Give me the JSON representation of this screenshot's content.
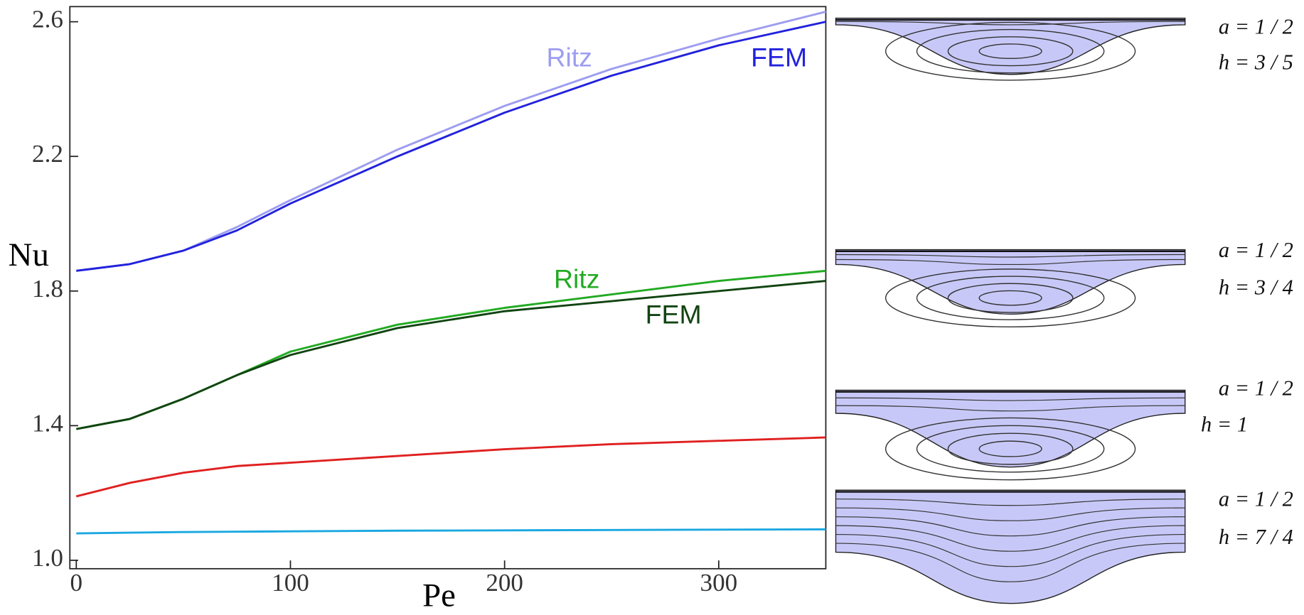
{
  "chart_data": {
    "type": "line",
    "x_label": "Pe",
    "y_label": "Nu",
    "x": [
      0,
      25,
      50,
      75,
      100,
      150,
      200,
      250,
      300,
      350
    ],
    "series": [
      {
        "color": "#9d9df0",
        "values": [
          1.86,
          1.88,
          1.92,
          1.99,
          2.07,
          2.22,
          2.35,
          2.46,
          2.55,
          2.63
        ]
      },
      {
        "color": "#2222dd",
        "values": [
          1.86,
          1.88,
          1.92,
          1.98,
          2.06,
          2.2,
          2.33,
          2.44,
          2.53,
          2.6
        ]
      },
      {
        "color": "#22aa22",
        "values": [
          1.39,
          1.42,
          1.48,
          1.55,
          1.62,
          1.7,
          1.75,
          1.79,
          1.83,
          1.86
        ]
      },
      {
        "color": "#114411",
        "values": [
          1.39,
          1.42,
          1.48,
          1.55,
          1.61,
          1.69,
          1.74,
          1.77,
          1.8,
          1.83
        ]
      },
      {
        "color": "#e02020",
        "values": [
          1.19,
          1.23,
          1.26,
          1.28,
          1.29,
          1.31,
          1.33,
          1.345,
          1.355,
          1.365
        ]
      },
      {
        "color": "#1aa8e0",
        "values": [
          1.08,
          1.082,
          1.084,
          1.085,
          1.086,
          1.088,
          1.089,
          1.09,
          1.091,
          1.092
        ]
      }
    ],
    "annotations": [
      {
        "text": "Ritz",
        "color": "#9d9df0"
      },
      {
        "text": "FEM",
        "color": "#2222dd"
      },
      {
        "text": "Ritz",
        "color": "#22aa22"
      },
      {
        "text": "FEM",
        "color": "#114411"
      }
    ],
    "xlim": [
      -3,
      350
    ],
    "ylim": [
      0.975,
      2.645
    ],
    "xticks": [
      0,
      100,
      200,
      300
    ],
    "yticks": [
      {
        "value": 1.0,
        "label": "1.0"
      },
      1.4,
      1.8,
      2.2,
      2.6
    ]
  },
  "streamline_panels": [
    {
      "a": "a = 1 / 2",
      "h": "h = 3 / 5"
    },
    {
      "a": "a = 1 / 2",
      "h": "h = 3 / 4"
    },
    {
      "a": "a = 1 / 2",
      "h": "h = 1"
    },
    {
      "a": "a = 1 / 2",
      "h": "h = 7 / 4"
    }
  ]
}
